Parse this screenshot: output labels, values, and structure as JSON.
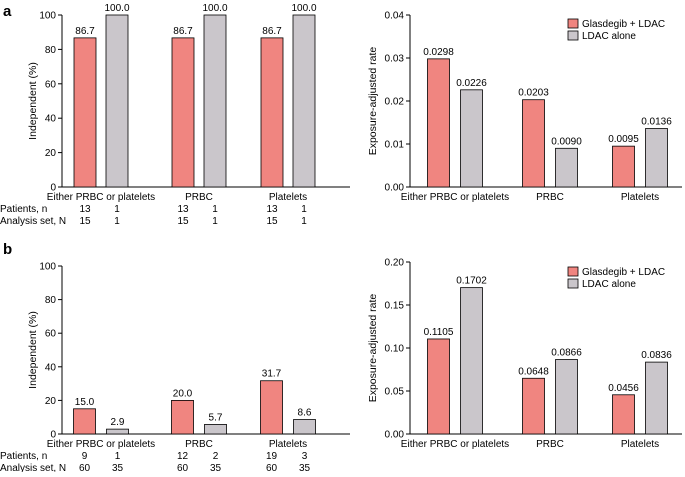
{
  "colors": {
    "glasdegib": "#f08580",
    "ldac": "#cac6cb",
    "axis": "#000000"
  },
  "panels": [
    {
      "id": "a",
      "label": "a"
    },
    {
      "id": "b",
      "label": "b"
    }
  ],
  "row_labels": {
    "patients": "Patients, n",
    "analysis": "Analysis set, N"
  },
  "chart_data": [
    {
      "id": "a-left",
      "type": "bar",
      "ylabel": "Independent (%)",
      "ylim": [
        0,
        100
      ],
      "yticks": [
        "0",
        "20",
        "40",
        "60",
        "80",
        "100"
      ],
      "categories": [
        "Either PRBC or platelets",
        "PRBC",
        "Platelets"
      ],
      "series": [
        {
          "name": "Glasdegib + LDAC",
          "values": [
            86.7,
            86.7,
            86.7
          ],
          "labels": [
            "86.7",
            "86.7",
            "86.7"
          ]
        },
        {
          "name": "LDAC alone",
          "values": [
            100.0,
            100.0,
            100.0
          ],
          "labels": [
            "100.0",
            "100.0",
            "100.0"
          ]
        }
      ],
      "counts": [
        {
          "patients": [
            "13",
            "1"
          ],
          "analysis": [
            "15",
            "1"
          ]
        },
        {
          "patients": [
            "13",
            "1"
          ],
          "analysis": [
            "15",
            "1"
          ]
        },
        {
          "patients": [
            "13",
            "1"
          ],
          "analysis": [
            "15",
            "1"
          ]
        }
      ]
    },
    {
      "id": "a-right",
      "type": "bar",
      "ylabel": "Exposure-adjusted rate",
      "ylim": [
        0,
        0.04
      ],
      "yticks": [
        "0.00",
        "0.01",
        "0.02",
        "0.03",
        "0.04"
      ],
      "categories": [
        "Either PRBC or platelets",
        "PRBC",
        "Platelets"
      ],
      "legend": [
        "Glasdegib + LDAC",
        "LDAC alone"
      ],
      "series": [
        {
          "name": "Glasdegib + LDAC",
          "values": [
            0.0298,
            0.0203,
            0.0095
          ],
          "labels": [
            "0.0298",
            "0.0203",
            "0.0095"
          ]
        },
        {
          "name": "LDAC alone",
          "values": [
            0.0226,
            0.009,
            0.0136
          ],
          "labels": [
            "0.0226",
            "0.0090",
            "0.0136"
          ]
        }
      ]
    },
    {
      "id": "b-left",
      "type": "bar",
      "ylabel": "Independent (%)",
      "ylim": [
        0,
        100
      ],
      "yticks": [
        "0",
        "20",
        "40",
        "60",
        "80",
        "100"
      ],
      "categories": [
        "Either PRBC or platelets",
        "PRBC",
        "Platelets"
      ],
      "series": [
        {
          "name": "Glasdegib + LDAC",
          "values": [
            15.0,
            20.0,
            31.7
          ],
          "labels": [
            "15.0",
            "20.0",
            "31.7"
          ]
        },
        {
          "name": "LDAC alone",
          "values": [
            2.9,
            5.7,
            8.6
          ],
          "labels": [
            "2.9",
            "5.7",
            "8.6"
          ]
        }
      ],
      "counts": [
        {
          "patients": [
            "9",
            "1"
          ],
          "analysis": [
            "60",
            "35"
          ]
        },
        {
          "patients": [
            "12",
            "2"
          ],
          "analysis": [
            "60",
            "35"
          ]
        },
        {
          "patients": [
            "19",
            "3"
          ],
          "analysis": [
            "60",
            "35"
          ]
        }
      ]
    },
    {
      "id": "b-right",
      "type": "bar",
      "ylabel": "Exposure-adjusted rate",
      "ylim": [
        0,
        0.2
      ],
      "yticks": [
        "0.00",
        "0.05",
        "0.10",
        "0.15",
        "0.20"
      ],
      "categories": [
        "Either PRBC or platelets",
        "PRBC",
        "Platelets"
      ],
      "legend": [
        "Glasdegib + LDAC",
        "LDAC alone"
      ],
      "series": [
        {
          "name": "Glasdegib + LDAC",
          "values": [
            0.1105,
            0.0648,
            0.0456
          ],
          "labels": [
            "0.1105",
            "0.0648",
            "0.0456"
          ]
        },
        {
          "name": "LDAC alone",
          "values": [
            0.1702,
            0.0866,
            0.0836
          ],
          "labels": [
            "0.1702",
            "0.0866",
            "0.0836"
          ]
        }
      ]
    }
  ]
}
